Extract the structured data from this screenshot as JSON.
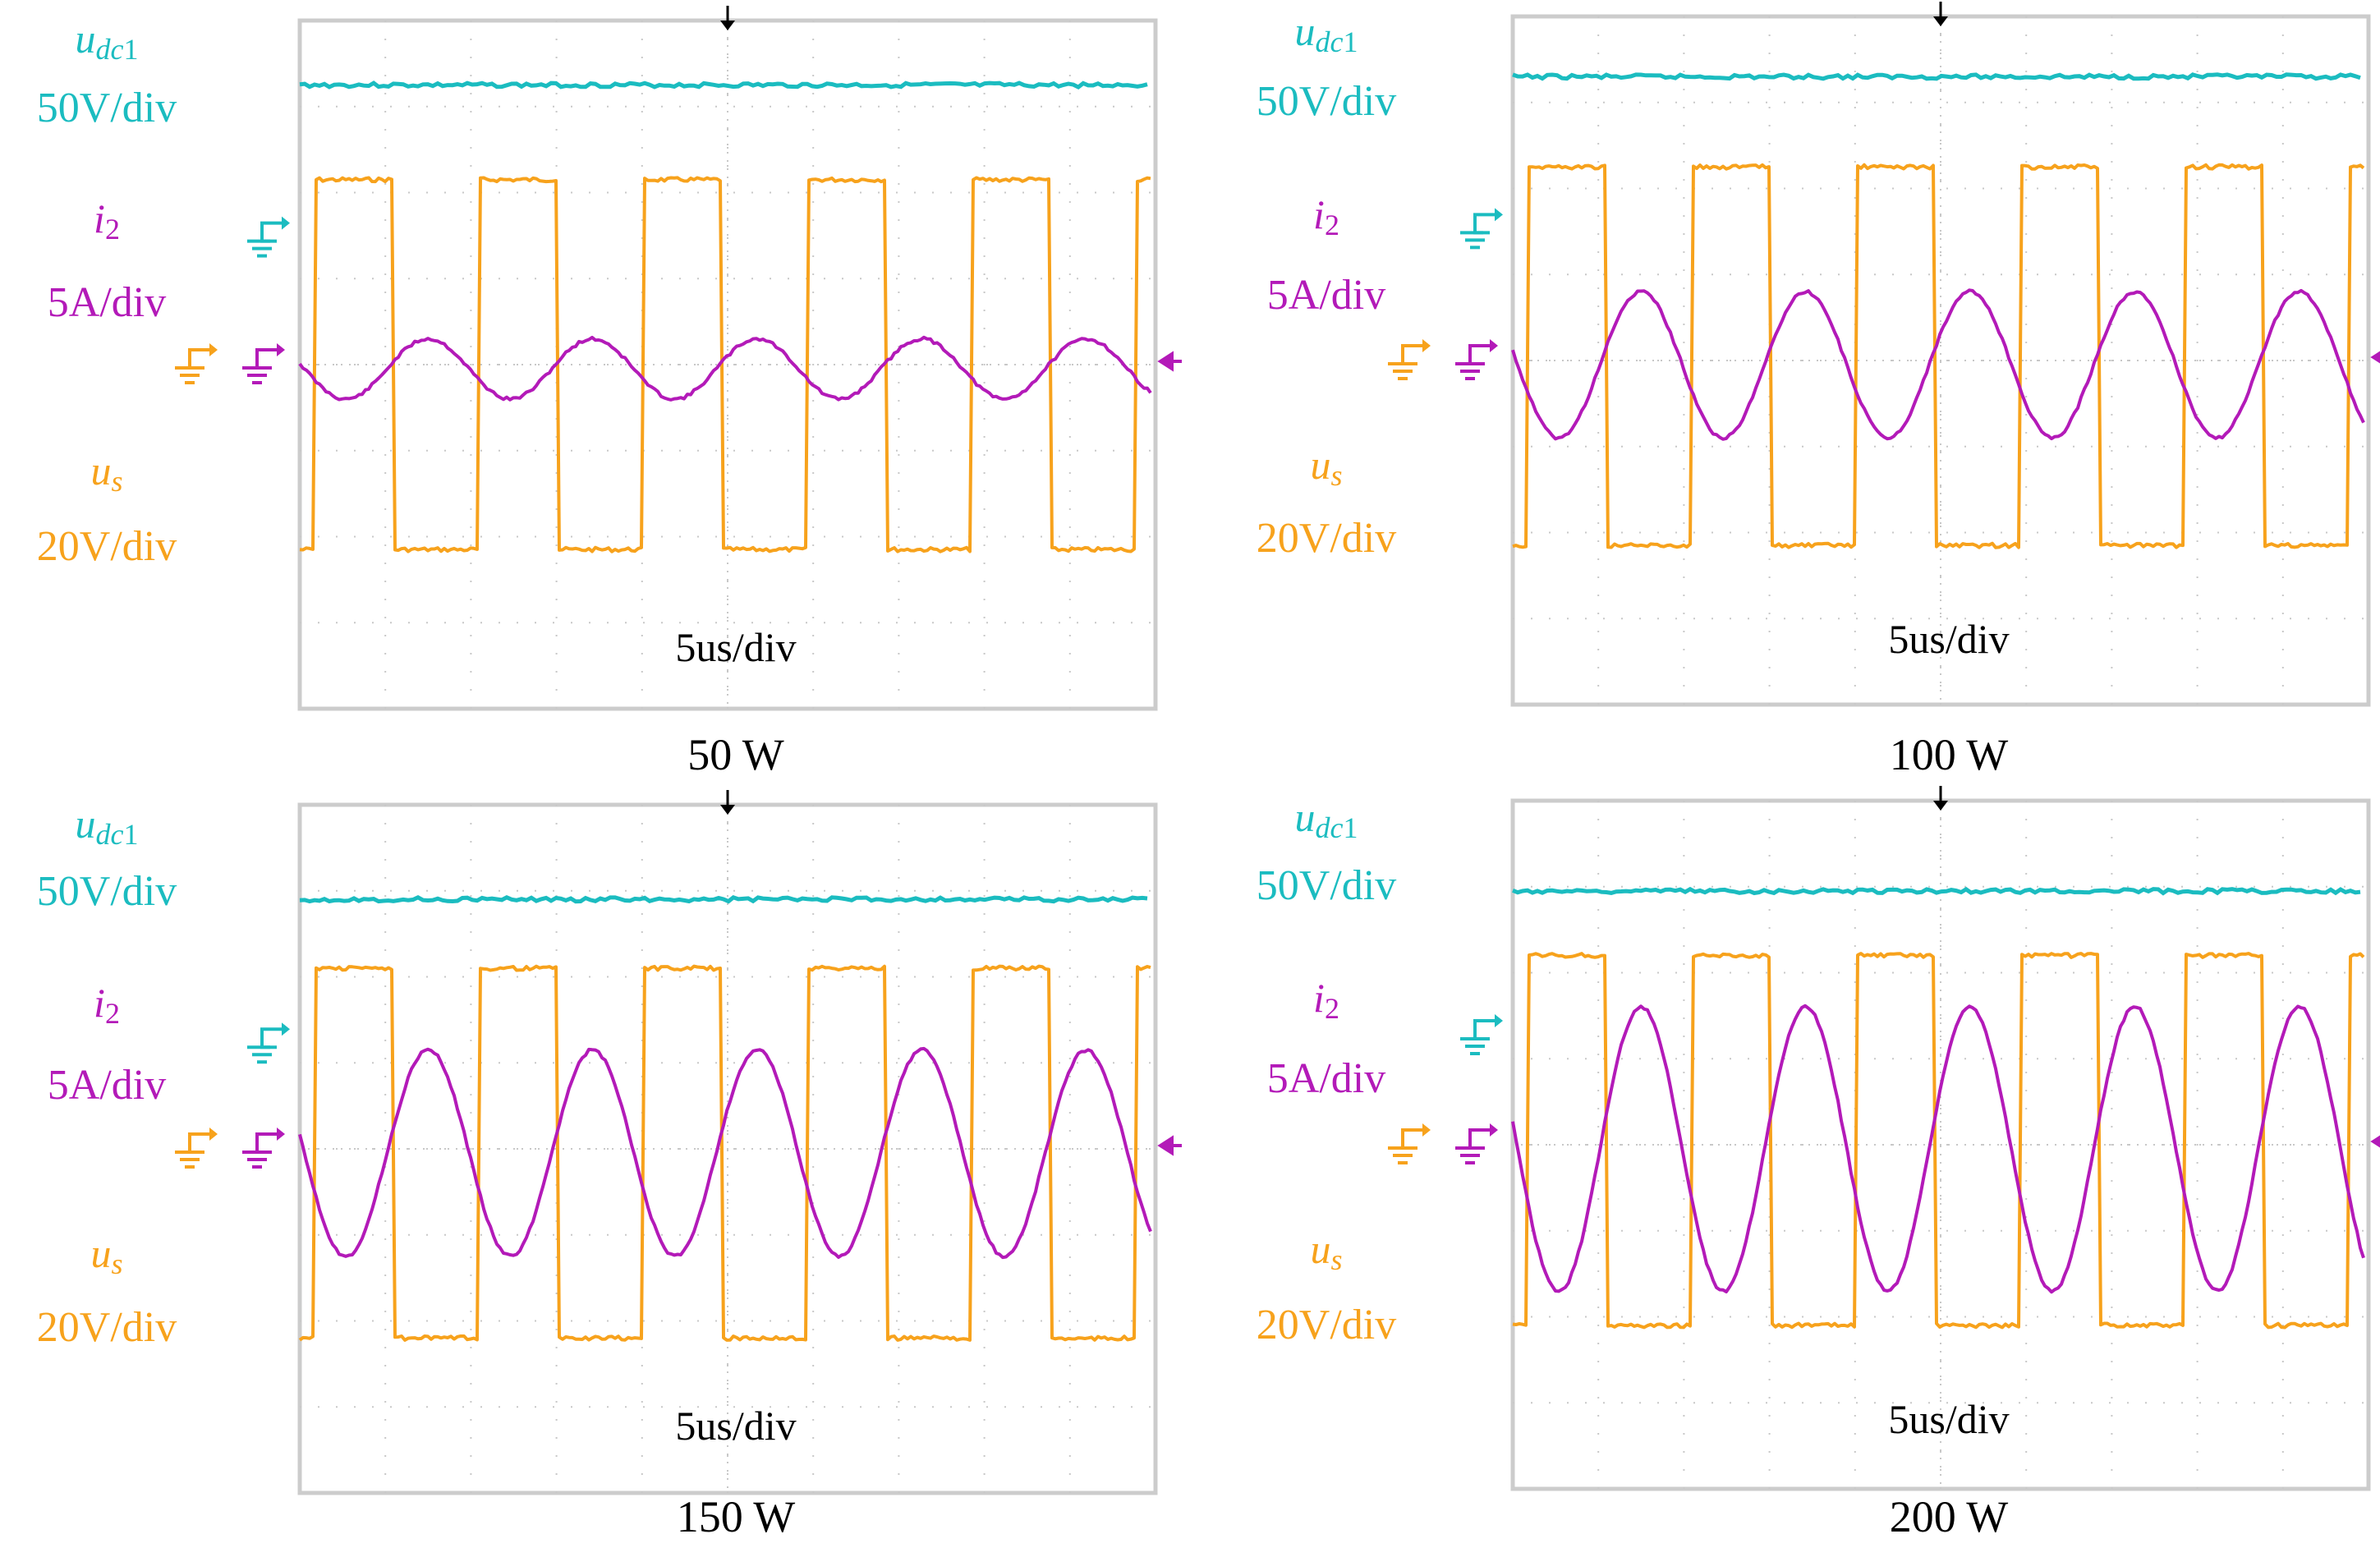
{
  "colors": {
    "udc": "#1bbcc0",
    "us": "#f7a21c",
    "i2": "#b31ab8",
    "grid": "#c8c8c8",
    "frame": "#cccccc",
    "text": "#000000"
  },
  "labels": {
    "udc_main": "u",
    "udc_sub": "dc",
    "udc_sub2": "1",
    "udc_scale": "50V/div",
    "i2_main": "i",
    "i2_sub": "2",
    "i2_scale": "5A/div",
    "us_main": "u",
    "us_sub": "s",
    "us_scale": "20V/div",
    "time_scale": "5us/div"
  },
  "chart_data": [
    {
      "type": "line",
      "title": "50 W",
      "grid": {
        "x_div": 10,
        "y_div": 8
      },
      "series": [
        {
          "name": "udc1",
          "scale": "50V/div",
          "level_div": 3.25
        },
        {
          "name": "us",
          "scale": "20V/div",
          "shape": "square",
          "high_div": 2.15,
          "low_div": -2.15,
          "periods": 5.2,
          "rise_phase": 0.09,
          "duty": 0.48
        },
        {
          "name": "i2",
          "scale": "5A/div",
          "shape": "sine",
          "amplitude_div": 0.35,
          "offset_div": -0.05,
          "periods": 5.2,
          "phase": 0.28
        }
      ]
    },
    {
      "type": "line",
      "title": "100 W",
      "grid": {
        "x_div": 10,
        "y_div": 8
      },
      "series": [
        {
          "name": "udc1",
          "scale": "50V/div",
          "level_div": 3.3
        },
        {
          "name": "us",
          "scale": "20V/div",
          "shape": "square",
          "high_div": 2.25,
          "low_div": -2.15,
          "periods": 5.2,
          "rise_phase": 0.09,
          "duty": 0.48
        },
        {
          "name": "i2",
          "scale": "5A/div",
          "shape": "sine",
          "amplitude_div": 0.85,
          "offset_div": -0.05,
          "periods": 5.2,
          "phase": 0.28
        }
      ]
    },
    {
      "type": "line",
      "title": "150 W",
      "grid": {
        "x_div": 10,
        "y_div": 8
      },
      "series": [
        {
          "name": "udc1",
          "scale": "50V/div",
          "level_div": 2.9
        },
        {
          "name": "us",
          "scale": "20V/div",
          "shape": "square",
          "high_div": 2.1,
          "low_div": -2.2,
          "periods": 5.2,
          "rise_phase": 0.09,
          "duty": 0.48
        },
        {
          "name": "i2",
          "scale": "5A/div",
          "shape": "sine",
          "amplitude_div": 1.2,
          "offset_div": -0.05,
          "periods": 5.2,
          "phase": 0.28
        }
      ]
    },
    {
      "type": "line",
      "title": "200 W",
      "grid": {
        "x_div": 10,
        "y_div": 8
      },
      "series": [
        {
          "name": "udc1",
          "scale": "50V/div",
          "level_div": 2.95
        },
        {
          "name": "us",
          "scale": "20V/div",
          "shape": "square",
          "high_div": 2.2,
          "low_div": -2.1,
          "periods": 5.2,
          "rise_phase": 0.09,
          "duty": 0.48
        },
        {
          "name": "i2",
          "scale": "5A/div",
          "shape": "sine",
          "amplitude_div": 1.65,
          "offset_div": -0.05,
          "periods": 5.2,
          "phase": 0.28
        }
      ]
    }
  ]
}
